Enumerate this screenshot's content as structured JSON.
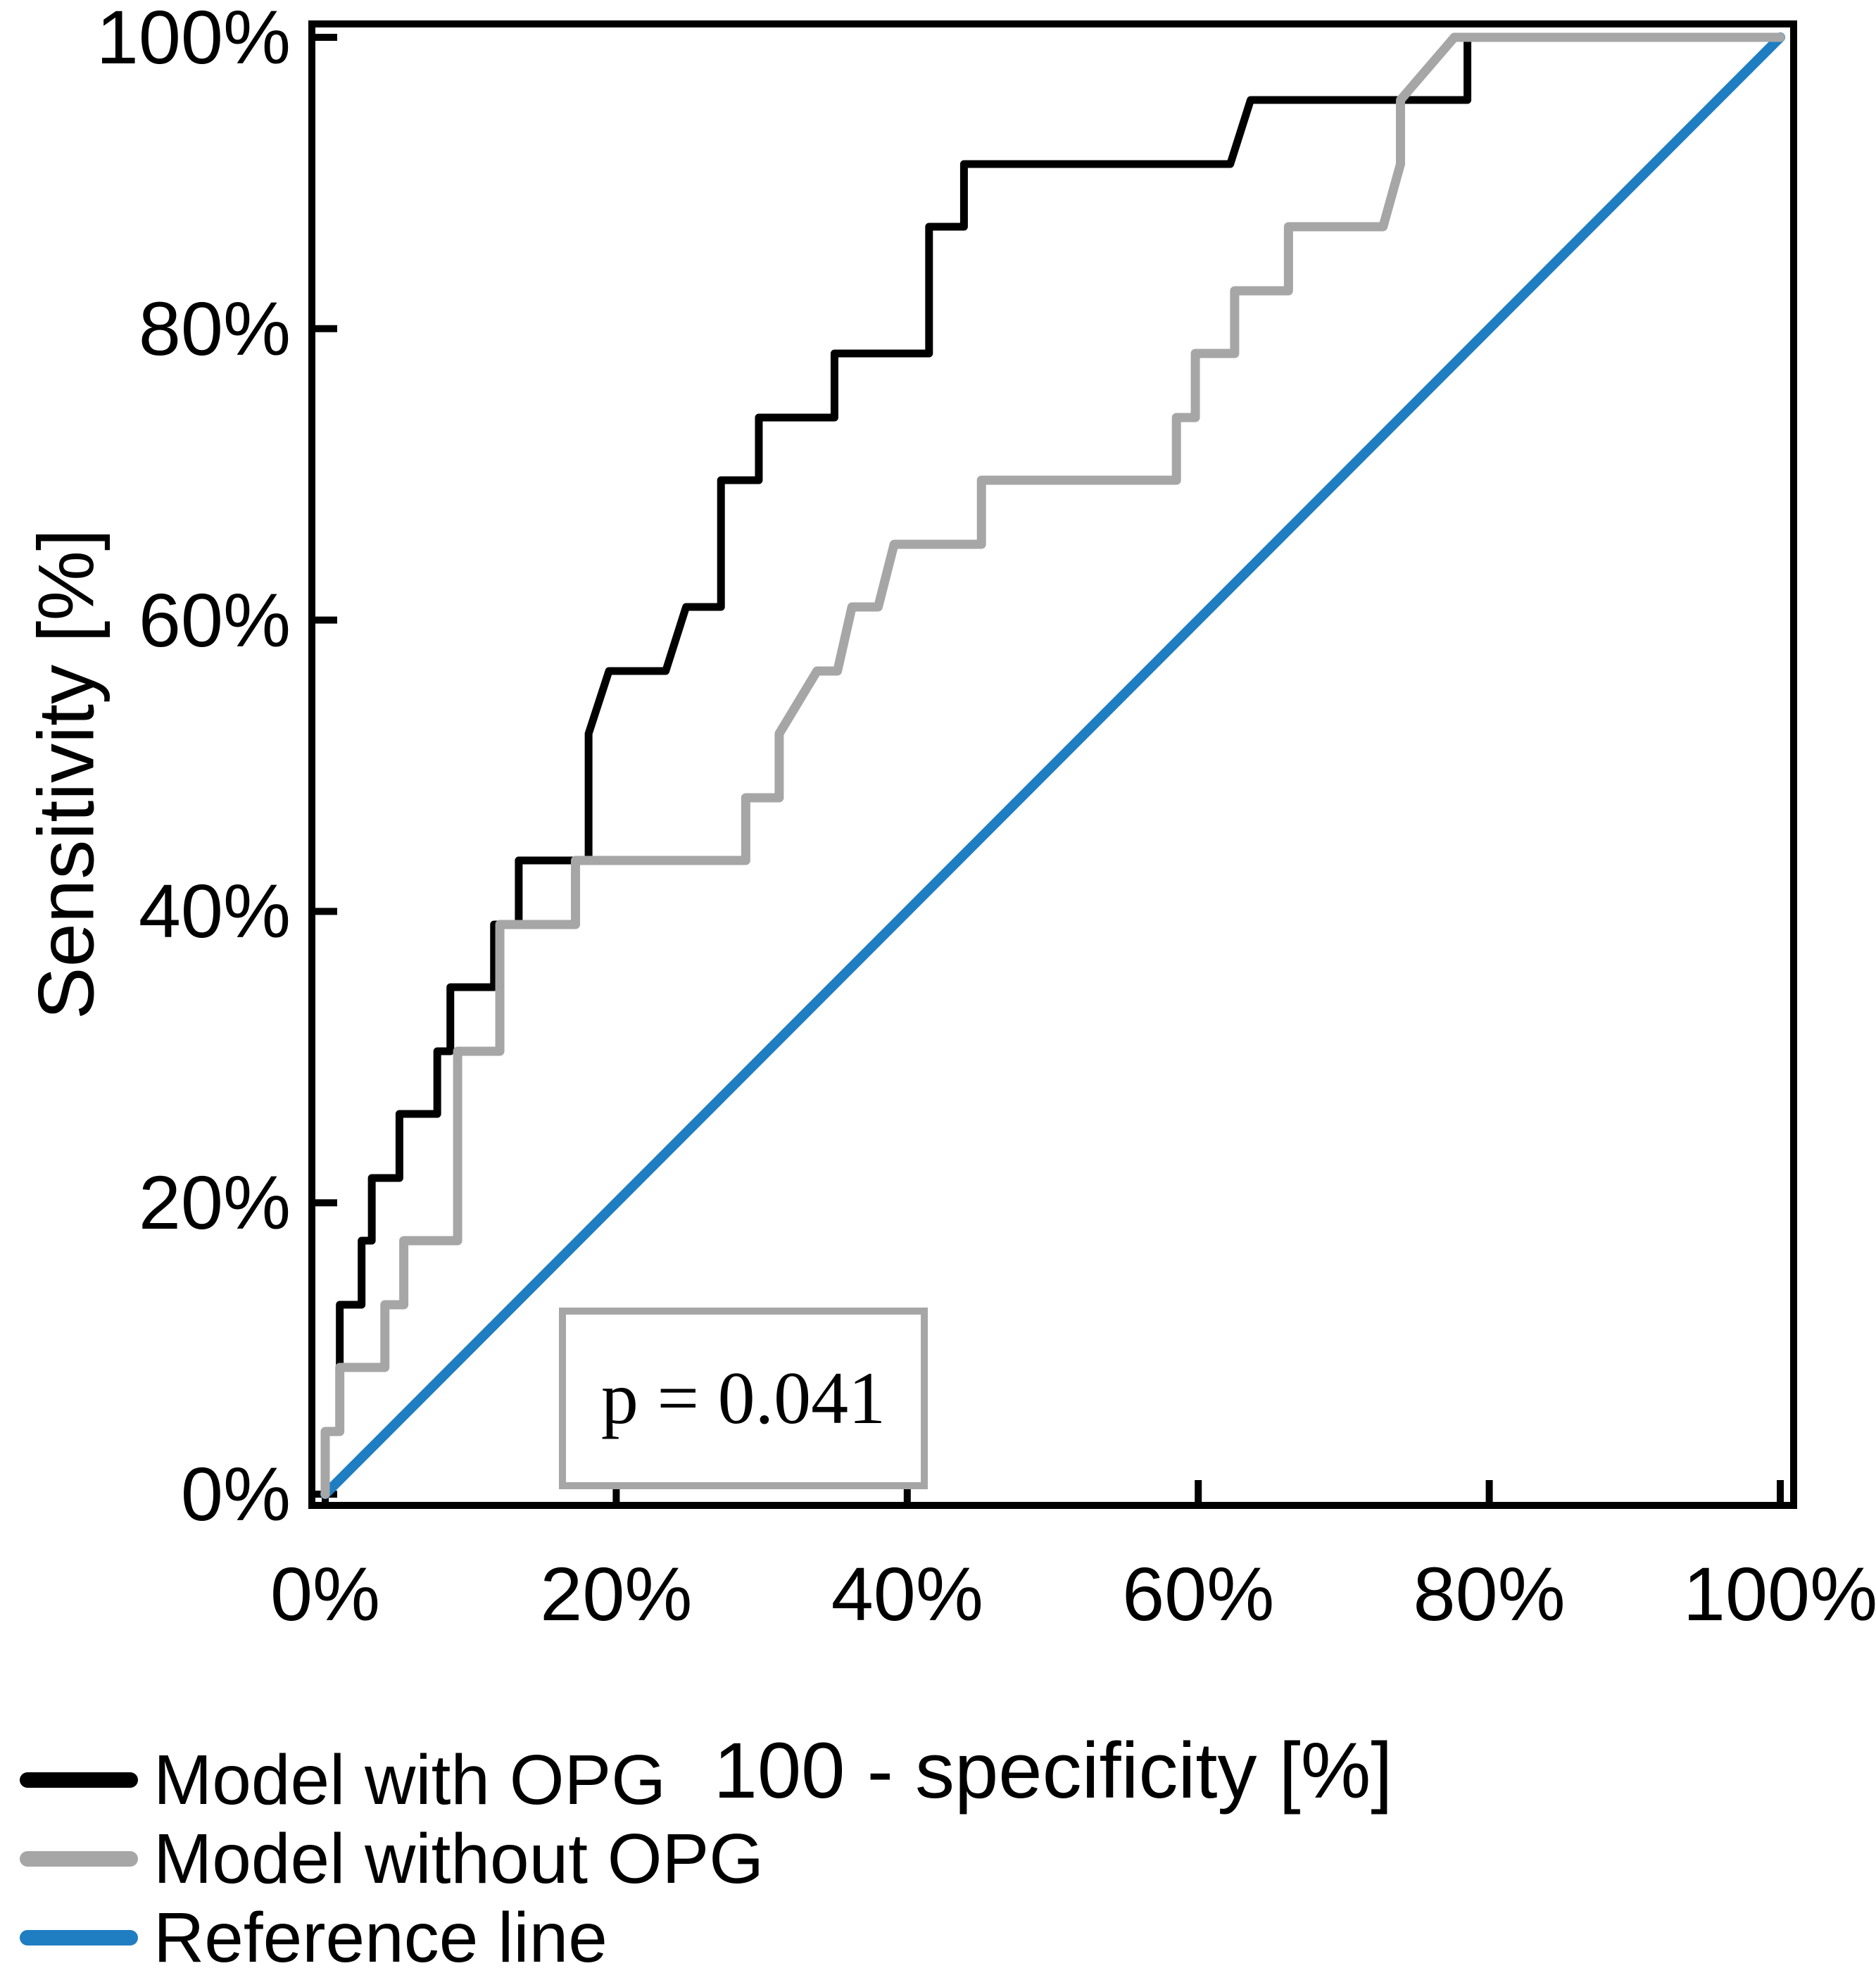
{
  "figure": {
    "kind": "ROC curve figure",
    "annotation": {
      "p_value_text": "p = 0.041"
    },
    "colors": {
      "model_with_opg": "#000000",
      "model_without_opg": "#a6a6a6",
      "reference": "#1f7dc2",
      "frame": "#000000"
    },
    "legend": [
      {
        "label": "Model with OPG",
        "color": "#000000"
      },
      {
        "label": "Model without OPG",
        "color": "#a6a6a6"
      },
      {
        "label": "Reference line",
        "color": "#1f7dc2"
      }
    ]
  },
  "chart_data": {
    "type": "line",
    "subtype": "roc-step-curves",
    "title": "",
    "xlabel": "100 - specificity [%]",
    "ylabel": "Sensitivity [%]",
    "xlim": [
      0,
      100
    ],
    "ylim": [
      0,
      100
    ],
    "grid": false,
    "legend_position": "bottom-left outside",
    "x_ticks": [
      {
        "value": 0,
        "label": "0%"
      },
      {
        "value": 20,
        "label": "20%"
      },
      {
        "value": 40,
        "label": "40%"
      },
      {
        "value": 60,
        "label": "60%"
      },
      {
        "value": 80,
        "label": "80%"
      },
      {
        "value": 100,
        "label": "100%"
      }
    ],
    "y_ticks": [
      {
        "value": 0,
        "label": "0%"
      },
      {
        "value": 20,
        "label": "20%"
      },
      {
        "value": 40,
        "label": "40%"
      },
      {
        "value": 60,
        "label": "60%"
      },
      {
        "value": 80,
        "label": "80%"
      },
      {
        "value": 100,
        "label": "100%"
      }
    ],
    "annotations": [
      {
        "text": "p = 0.041",
        "x_range": [
          16,
          41.5
        ],
        "y_range": [
          1.2,
          12.8
        ],
        "border_color": "#a6a6a6"
      }
    ],
    "series": [
      {
        "name": "Model with OPG",
        "color": "#000000",
        "stroke_width": 11,
        "points": [
          [
            0,
            0
          ],
          [
            0,
            4.3
          ],
          [
            1.0,
            4.3
          ],
          [
            1.0,
            13.0
          ],
          [
            2.5,
            13.0
          ],
          [
            2.5,
            17.4
          ],
          [
            3.2,
            17.4
          ],
          [
            3.2,
            21.7
          ],
          [
            5.1,
            21.7
          ],
          [
            5.1,
            26.1
          ],
          [
            7.7,
            26.1
          ],
          [
            7.7,
            30.4
          ],
          [
            8.6,
            30.4
          ],
          [
            8.6,
            34.8
          ],
          [
            11.6,
            34.8
          ],
          [
            11.6,
            39.1
          ],
          [
            13.3,
            39.1
          ],
          [
            13.3,
            43.5
          ],
          [
            18.1,
            43.5
          ],
          [
            18.1,
            52.2
          ],
          [
            19.5,
            56.5
          ],
          [
            23.4,
            56.5
          ],
          [
            24.8,
            60.9
          ],
          [
            27.2,
            60.9
          ],
          [
            27.2,
            69.6
          ],
          [
            29.8,
            69.6
          ],
          [
            29.8,
            73.9
          ],
          [
            35.0,
            73.9
          ],
          [
            35.0,
            78.3
          ],
          [
            41.5,
            78.3
          ],
          [
            41.5,
            87.0
          ],
          [
            43.9,
            87.0
          ],
          [
            43.9,
            91.3
          ],
          [
            62.2,
            91.3
          ],
          [
            63.6,
            95.7
          ],
          [
            78.5,
            95.7
          ],
          [
            78.5,
            100
          ],
          [
            100,
            100
          ]
        ]
      },
      {
        "name": "Model without OPG",
        "color": "#a6a6a6",
        "stroke_width": 13,
        "points": [
          [
            0,
            0
          ],
          [
            0,
            4.3
          ],
          [
            1.0,
            4.3
          ],
          [
            1.0,
            8.7
          ],
          [
            4.1,
            8.7
          ],
          [
            4.1,
            13.0
          ],
          [
            5.4,
            13.0
          ],
          [
            5.4,
            17.4
          ],
          [
            9.1,
            17.4
          ],
          [
            9.1,
            30.4
          ],
          [
            12.0,
            30.4
          ],
          [
            12.0,
            39.1
          ],
          [
            17.2,
            39.1
          ],
          [
            17.2,
            43.5
          ],
          [
            28.9,
            43.5
          ],
          [
            28.9,
            47.8
          ],
          [
            31.2,
            47.8
          ],
          [
            31.2,
            52.2
          ],
          [
            33.8,
            56.5
          ],
          [
            35.2,
            56.5
          ],
          [
            36.2,
            60.9
          ],
          [
            38.0,
            60.9
          ],
          [
            39.1,
            65.2
          ],
          [
            45.1,
            65.2
          ],
          [
            45.1,
            69.6
          ],
          [
            58.5,
            69.6
          ],
          [
            58.5,
            73.9
          ],
          [
            59.8,
            73.9
          ],
          [
            59.8,
            78.3
          ],
          [
            62.5,
            78.3
          ],
          [
            62.5,
            82.6
          ],
          [
            66.2,
            82.6
          ],
          [
            66.2,
            87.0
          ],
          [
            72.7,
            87.0
          ],
          [
            73.9,
            91.3
          ],
          [
            73.9,
            95.7
          ],
          [
            77.6,
            100
          ],
          [
            100,
            100
          ]
        ]
      },
      {
        "name": "Reference line",
        "color": "#1f7dc2",
        "stroke_width": 14,
        "points": [
          [
            0,
            0
          ],
          [
            100,
            100
          ]
        ]
      }
    ]
  }
}
